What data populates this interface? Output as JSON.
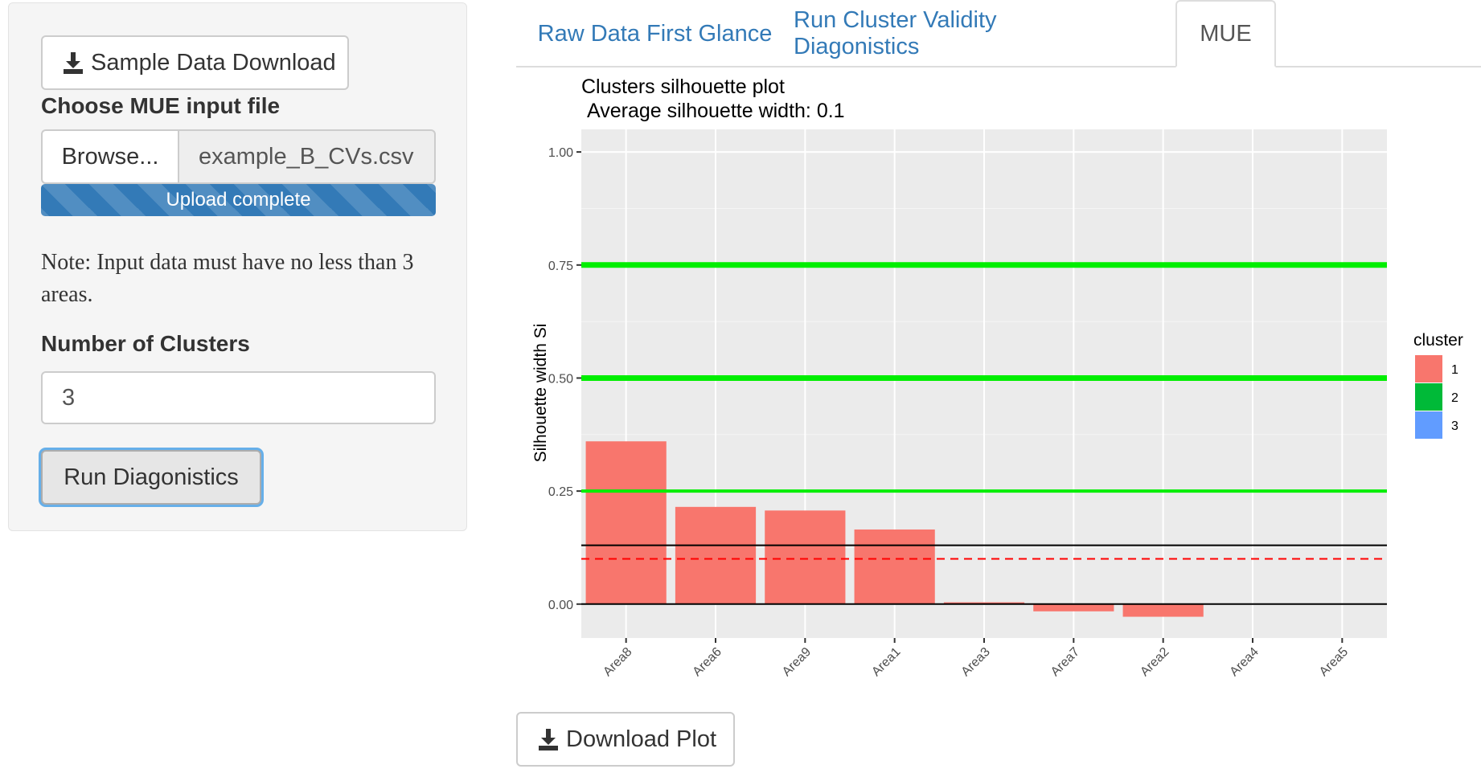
{
  "sidebar": {
    "sample_download_label": "Sample Data Download",
    "choose_file_label": "Choose MUE input file",
    "browse_label": "Browse...",
    "file_name": "example_B_CVs.csv",
    "upload_status": "Upload complete",
    "upload_progress_pct": 100,
    "note": "Note: Input data must have no less than 3 areas.",
    "clusters_label": "Number of Clusters",
    "clusters_value": "3",
    "run_label": "Run Diagonistics"
  },
  "tabs": [
    {
      "label": "Raw Data First Glance",
      "active": false
    },
    {
      "label": "Run Cluster Validity Diagonistics",
      "active": false
    },
    {
      "label": "MUE",
      "active": true
    }
  ],
  "icons": {
    "download": "download-icon"
  },
  "colors": {
    "link": "#337ab7",
    "progress": "#337ab7",
    "panel_bg": "#ebebeb",
    "hline_green": "#00ee00",
    "mean_line": "#ff0000"
  },
  "download_plot_label": "Download Plot",
  "chart_data": {
    "type": "bar",
    "title": "Clusters silhouette plot",
    "subtitle": "Average silhouette width: 0.1",
    "xlabel": "",
    "ylabel": "Silhouette width Si",
    "categories": [
      "Area8",
      "Area6",
      "Area9",
      "Area1",
      "Area3",
      "Area7",
      "Area2",
      "Area4",
      "Area5"
    ],
    "values": [
      0.36,
      0.215,
      0.207,
      0.165,
      0.004,
      -0.016,
      -0.028,
      0,
      0
    ],
    "cluster": [
      "1",
      "1",
      "1",
      "1",
      "1",
      "1",
      "1",
      "1",
      "1"
    ],
    "ylim": [
      -0.075,
      1.05
    ],
    "yticks": [
      0,
      0.25,
      0.5,
      0.75,
      1
    ],
    "ytick_labels": [
      "0.00",
      "0.25",
      "0.50",
      "0.75",
      "1.00"
    ],
    "hlines": [
      {
        "y": 0.25,
        "color": "#00ee00",
        "style": "solid"
      },
      {
        "y": 0.5,
        "color": "#00ee00",
        "style": "solid"
      },
      {
        "y": 0.75,
        "color": "#00ee00",
        "style": "solid"
      },
      {
        "y": 0.13,
        "color": "#000000",
        "style": "solid"
      },
      {
        "y": 0.1,
        "color": "#ff0000",
        "style": "dashed"
      },
      {
        "y": 0,
        "color": "#000000",
        "style": "solid"
      }
    ],
    "legend": {
      "title": "cluster",
      "position": "right",
      "entries": [
        {
          "label": "1",
          "color": "#f8766d"
        },
        {
          "label": "2",
          "color": "#00ba38"
        },
        {
          "label": "3",
          "color": "#619cff"
        }
      ]
    },
    "grid": true
  }
}
